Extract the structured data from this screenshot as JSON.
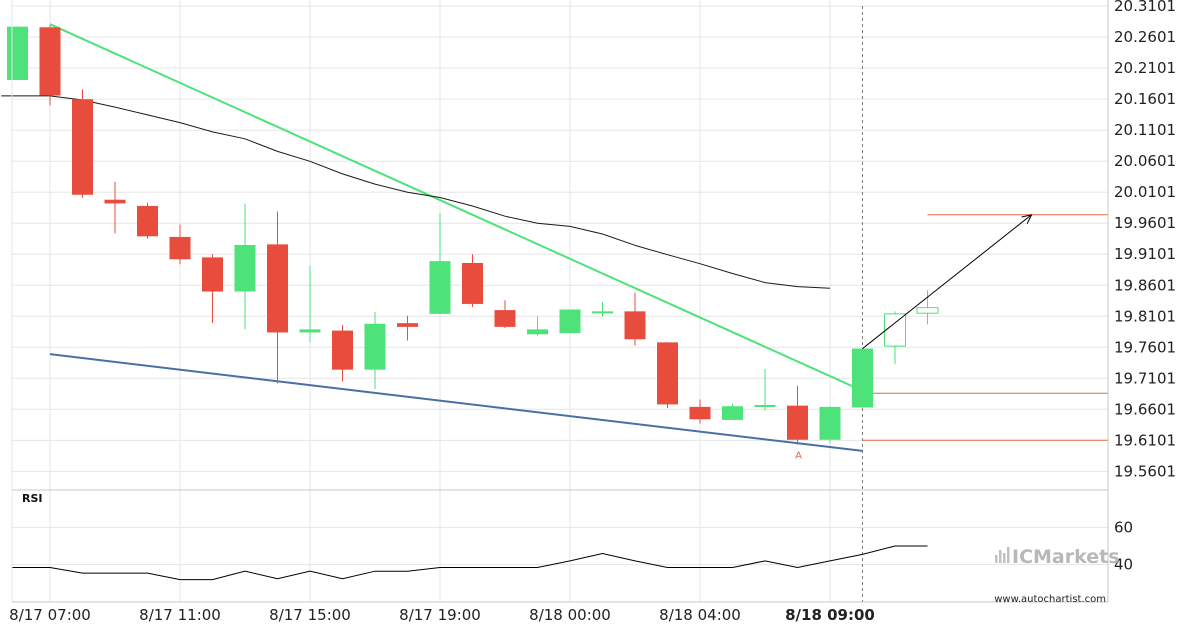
{
  "chart_data": {
    "type": "candlestick",
    "price_axis": {
      "ticks": [
        "20.3101",
        "20.2601",
        "20.2101",
        "20.1601",
        "20.1101",
        "20.0601",
        "20.0101",
        "19.9601",
        "19.9101",
        "19.8601",
        "19.8101",
        "19.7601",
        "19.7101",
        "19.6601",
        "19.6101",
        "19.5601"
      ],
      "ylim": [
        19.53,
        20.32
      ]
    },
    "time_axis": {
      "labels": [
        {
          "text": "8/17 07:00",
          "bar": 1
        },
        {
          "text": "8/17 11:00",
          "bar": 5
        },
        {
          "text": "8/17 15:00",
          "bar": 9
        },
        {
          "text": "8/17 19:00",
          "bar": 13
        },
        {
          "text": "8/18 00:00",
          "bar": 17
        },
        {
          "text": "8/18 04:00",
          "bar": 21
        },
        {
          "text": "8/18 09:00",
          "bar": 25,
          "current": true
        }
      ]
    },
    "candles": [
      {
        "o": 20.191,
        "h": 20.277,
        "l": 20.191,
        "c": 20.277
      },
      {
        "o": 20.276,
        "h": 20.279,
        "l": 20.15,
        "c": 20.166
      },
      {
        "o": 20.16,
        "h": 20.176,
        "l": 20.001,
        "c": 20.006
      },
      {
        "o": 19.998,
        "h": 20.027,
        "l": 19.944,
        "c": 19.992
      },
      {
        "o": 19.988,
        "h": 19.993,
        "l": 19.935,
        "c": 19.939
      },
      {
        "o": 19.938,
        "h": 19.958,
        "l": 19.894,
        "c": 19.902
      },
      {
        "o": 19.905,
        "h": 19.91,
        "l": 19.799,
        "c": 19.85
      },
      {
        "o": 19.85,
        "h": 19.992,
        "l": 19.789,
        "c": 19.925
      },
      {
        "o": 19.926,
        "h": 19.979,
        "l": 19.702,
        "c": 19.784
      },
      {
        "o": 19.784,
        "h": 19.892,
        "l": 19.768,
        "c": 19.789
      },
      {
        "o": 19.787,
        "h": 19.796,
        "l": 19.705,
        "c": 19.724
      },
      {
        "o": 19.724,
        "h": 19.817,
        "l": 19.693,
        "c": 19.798
      },
      {
        "o": 19.799,
        "h": 19.811,
        "l": 19.771,
        "c": 19.793
      },
      {
        "o": 19.814,
        "h": 19.976,
        "l": 19.814,
        "c": 19.899
      },
      {
        "o": 19.896,
        "h": 19.91,
        "l": 19.825,
        "c": 19.83
      },
      {
        "o": 19.82,
        "h": 19.836,
        "l": 19.791,
        "c": 19.793
      },
      {
        "o": 19.781,
        "h": 19.81,
        "l": 19.779,
        "c": 19.789
      },
      {
        "o": 19.783,
        "h": 19.821,
        "l": 19.783,
        "c": 19.821
      },
      {
        "o": 19.818,
        "h": 19.833,
        "l": 19.81,
        "c": 19.818
      },
      {
        "o": 19.818,
        "h": 19.848,
        "l": 19.763,
        "c": 19.773
      },
      {
        "o": 19.768,
        "h": 19.768,
        "l": 19.662,
        "c": 19.668
      },
      {
        "o": 19.664,
        "h": 19.676,
        "l": 19.637,
        "c": 19.644
      },
      {
        "o": 19.643,
        "h": 19.669,
        "l": 19.643,
        "c": 19.665
      },
      {
        "o": 19.666,
        "h": 19.725,
        "l": 19.658,
        "c": 19.667
      },
      {
        "o": 19.666,
        "h": 19.698,
        "l": 19.603,
        "c": 19.611
      },
      {
        "o": 19.611,
        "h": 19.665,
        "l": 19.605,
        "c": 19.664
      },
      {
        "o": 19.663,
        "h": 19.758,
        "l": 19.663,
        "c": 19.758
      },
      {
        "o": 19.762,
        "h": 19.818,
        "l": 19.733,
        "c": 19.814,
        "hollow": true
      },
      {
        "o": 19.815,
        "h": 19.852,
        "l": 19.797,
        "c": 19.824,
        "hollow": true
      }
    ],
    "moving_average": {
      "points": [
        [
          -0.5,
          20.1654
        ],
        [
          0,
          20.1654
        ],
        [
          1,
          20.1654
        ],
        [
          2,
          20.1588
        ],
        [
          3,
          20.1474
        ],
        [
          4,
          20.1347
        ],
        [
          5,
          20.1224
        ],
        [
          6,
          20.1073
        ],
        [
          7,
          20.0963
        ],
        [
          8,
          20.0759
        ],
        [
          9,
          20.0599
        ],
        [
          10,
          20.0397
        ],
        [
          11,
          20.0232
        ],
        [
          12,
          20.0101
        ],
        [
          13,
          20.0016
        ],
        [
          14,
          19.9878
        ],
        [
          15,
          19.9715
        ],
        [
          16,
          19.9602
        ],
        [
          17,
          19.955
        ],
        [
          18,
          19.9427
        ],
        [
          19,
          19.9245
        ],
        [
          20,
          19.9093
        ],
        [
          21,
          19.8948
        ],
        [
          22,
          19.8791
        ],
        [
          23,
          19.8644
        ],
        [
          24,
          19.8579
        ],
        [
          25,
          19.8553
        ]
      ]
    },
    "trendlines": [
      {
        "name": "resistance",
        "color": "#4de27a",
        "from": [
          1,
          20.281
        ],
        "to": [
          26,
          19.69
        ]
      },
      {
        "name": "support",
        "color": "#4a6fa5",
        "from": [
          1,
          19.749
        ],
        "to": [
          26,
          19.593
        ]
      }
    ],
    "levels": [
      {
        "name": "target",
        "value": 19.9737,
        "color": "#e8674b"
      },
      {
        "name": "breakout",
        "value": 19.6859,
        "color": "#e8674b"
      },
      {
        "name": "support-touch",
        "value": 19.6103,
        "color": "#e8674b"
      }
    ],
    "projection": {
      "from": [
        26,
        19.758
      ],
      "to": [
        31.2,
        19.9737
      ],
      "color": "#000000"
    },
    "current_time_bar": 26,
    "pattern_marker": {
      "text": "A",
      "bar": 24,
      "value": 19.6
    },
    "rsi": {
      "label": "RSI",
      "ticks": [
        "60",
        "40"
      ],
      "ylim": [
        20,
        80
      ],
      "values": [
        38.5,
        38.5,
        35.5,
        35.5,
        35.5,
        32,
        32,
        36.5,
        32.5,
        36.5,
        32.5,
        36.5,
        36.5,
        38.5,
        38.5,
        38.5,
        38.5,
        42,
        46,
        42,
        38.5,
        38.5,
        38.5,
        42,
        38.5,
        42,
        45.5,
        50,
        50
      ]
    },
    "grid": true,
    "colors": {
      "bull": "#4de27a",
      "bear": "#e74c3c",
      "grid": "#e6e6e6",
      "axis": "#c8c8c8",
      "ma": "#1a1a1a",
      "current_line": "#7a7a7a"
    }
  },
  "branding": {
    "name": "ICMarkets",
    "source": "www.autochartist.com"
  }
}
